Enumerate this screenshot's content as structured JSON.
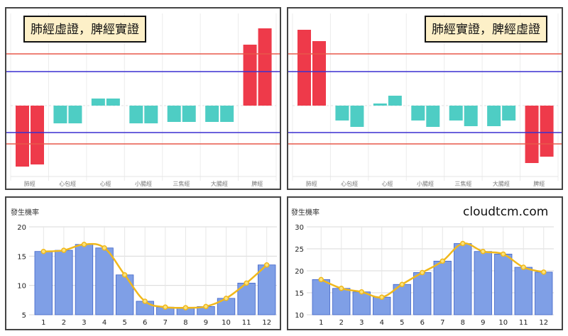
{
  "chart_data": [
    {
      "type": "bar",
      "title": "肺經虛證，脾經實證",
      "categories": [
        "肺經",
        "心包經",
        "心經",
        "小腸經",
        "三焦經",
        "大腸經",
        "脾經"
      ],
      "series": [
        {
          "name": "left",
          "values": [
            -8.6,
            -2.5,
            1.0,
            -2.5,
            -2.3,
            -2.3,
            8.6
          ]
        },
        {
          "name": "right",
          "values": [
            -8.3,
            -2.5,
            1.0,
            -2.5,
            -2.3,
            -2.3,
            10.9
          ]
        }
      ],
      "reference_lines": {
        "red": [
          7.3,
          -5.4
        ],
        "blue": [
          4.8,
          -3.8
        ]
      },
      "ylim": [
        -10,
        13
      ],
      "colors": {
        "extreme": "#ee3a4a",
        "normal": "#4ecdc4",
        "red_line": "#e8584a",
        "blue_line": "#3a2fd0"
      }
    },
    {
      "type": "bar",
      "title": "肺經實證，脾經虛證",
      "categories": [
        "肺經",
        "心包經",
        "心經",
        "小腸經",
        "三焦經",
        "大腸經",
        "脾經"
      ],
      "series": [
        {
          "name": "left",
          "values": [
            10.7,
            -2.1,
            0.3,
            -2.1,
            -2.1,
            -2.9,
            -8.1
          ]
        },
        {
          "name": "right",
          "values": [
            9.1,
            -3.0,
            1.4,
            -3.0,
            -2.9,
            -2.1,
            -7.2
          ]
        }
      ],
      "reference_lines": {
        "red": [
          7.3,
          -5.4
        ],
        "blue": [
          4.8,
          -3.8
        ]
      },
      "ylim": [
        -10,
        13
      ],
      "colors": {
        "extreme": "#ee3a4a",
        "normal": "#4ecdc4",
        "red_line": "#e8584a",
        "blue_line": "#3a2fd0"
      }
    },
    {
      "type": "bar",
      "ylabel": "發生機率",
      "categories": [
        "1",
        "2",
        "3",
        "4",
        "5",
        "6",
        "7",
        "8",
        "9",
        "10",
        "11",
        "12"
      ],
      "values": [
        15.8,
        16.0,
        17.0,
        16.4,
        11.8,
        7.3,
        6.3,
        6.2,
        6.4,
        7.8,
        10.4,
        13.5
      ],
      "line_values": [
        15.8,
        16.0,
        17.0,
        16.4,
        11.8,
        7.3,
        6.3,
        6.2,
        6.4,
        7.8,
        10.4,
        13.5
      ],
      "ylim": [
        5,
        20
      ],
      "yticks": [
        "5",
        "10",
        "15",
        "20"
      ],
      "colors": {
        "bar": "#7f9fe6",
        "bar_border": "#3f63c8",
        "line": "#f0b81c"
      }
    },
    {
      "type": "bar",
      "ylabel": "發生機率",
      "categories": [
        "1",
        "2",
        "3",
        "4",
        "5",
        "6",
        "7",
        "8",
        "9",
        "10",
        "11",
        "12"
      ],
      "values": [
        18.0,
        16.0,
        15.2,
        14.0,
        16.9,
        19.6,
        22.2,
        26.2,
        24.4,
        23.8,
        20.8,
        19.7
      ],
      "line_values": [
        18.0,
        16.0,
        15.2,
        14.0,
        16.9,
        19.6,
        22.2,
        26.2,
        24.4,
        23.8,
        20.8,
        19.7
      ],
      "ylim": [
        10,
        30
      ],
      "yticks": [
        "10",
        "15",
        "20",
        "25",
        "30"
      ],
      "colors": {
        "bar": "#7f9fe6",
        "bar_border": "#3f63c8",
        "line": "#f0b81c"
      }
    }
  ],
  "watermark": "cloudtcm.com"
}
